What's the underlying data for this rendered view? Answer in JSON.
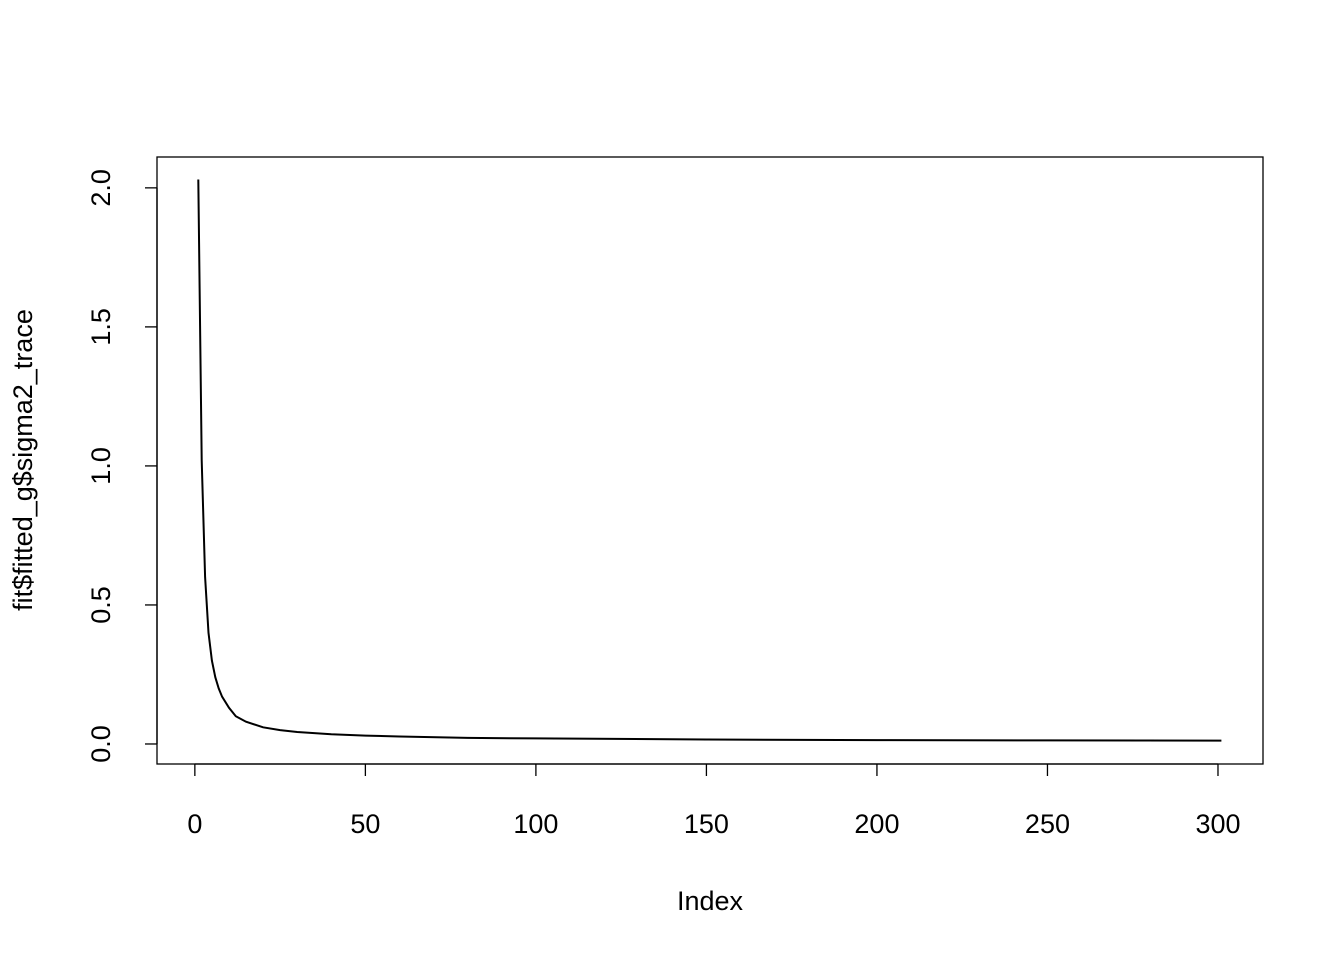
{
  "chart_data": {
    "type": "line",
    "title": "",
    "xlabel": "Index",
    "ylabel": "fit$fitted_g$sigma2_trace",
    "xlim": [
      -11.1,
      313.2
    ],
    "ylim": [
      -0.072,
      2.111
    ],
    "xticks": [
      0,
      50,
      100,
      150,
      200,
      250,
      300
    ],
    "xtick_labels": [
      "0",
      "50",
      "100",
      "150",
      "200",
      "250",
      "300"
    ],
    "yticks": [
      0,
      0.5,
      1,
      1.5,
      2
    ],
    "ytick_labels": [
      "0.0",
      "0.5",
      "1.0",
      "1.5",
      "2.0"
    ],
    "grid": false,
    "color": "#000000",
    "series": [
      {
        "x": [
          1,
          2,
          3,
          4,
          5,
          6,
          7,
          8,
          10,
          12,
          15,
          20,
          25,
          30,
          40,
          50,
          60,
          80,
          100,
          150,
          200,
          250,
          301
        ],
        "y": [
          2.03,
          1.02,
          0.6,
          0.4,
          0.3,
          0.24,
          0.2,
          0.17,
          0.13,
          0.1,
          0.08,
          0.06,
          0.05,
          0.043,
          0.035,
          0.03,
          0.027,
          0.022,
          0.02,
          0.016,
          0.014,
          0.013,
          0.012
        ]
      }
    ]
  }
}
